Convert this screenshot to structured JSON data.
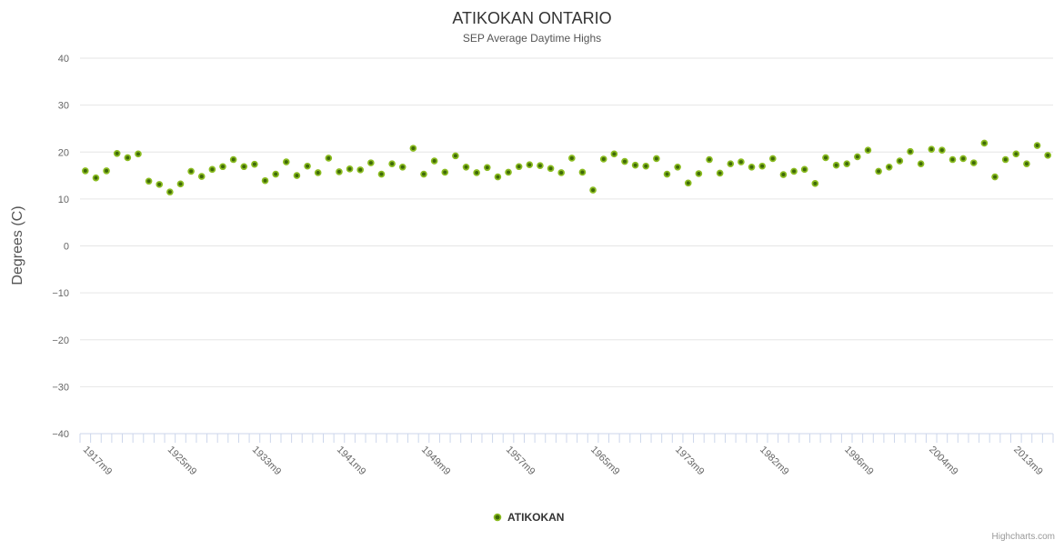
{
  "header": {
    "title": "ATIKOKAN ONTARIO",
    "subtitle": "SEP Average Daytime Highs"
  },
  "legend": {
    "items": [
      {
        "label": "ATIKOKAN",
        "marker": "circle-icon"
      }
    ]
  },
  "credits": {
    "label": "Highcharts.com"
  },
  "colors": {
    "series_green": "#8bbc21",
    "marker_center": "#3e6908",
    "gridline": "#e6e6e6",
    "axis_line": "#ccd6eb",
    "title_text": "#333333",
    "subtitle_text": "#555555",
    "axis_label_text": "#666666",
    "legend_text": "#333333",
    "credits_text": "#999999",
    "background": "#ffffff"
  },
  "chart_data": {
    "type": "scatter",
    "title": "ATIKOKAN ONTARIO",
    "subtitle": "SEP Average Daytime Highs",
    "xlabel": "",
    "ylabel": "Degrees (C)",
    "ylim": [
      -40,
      40
    ],
    "y_tick_interval": 10,
    "y_ticks": [
      40,
      30,
      20,
      10,
      0,
      -10,
      -20,
      -30,
      -40
    ],
    "x_tick_labels": [
      "1917m9",
      "1925m9",
      "1933m9",
      "1941m9",
      "1949m9",
      "1957m9",
      "1965m9",
      "1973m9",
      "1982m9",
      "1996m9",
      "2004m9",
      "2013m9"
    ],
    "x_tick_label_every": 8,
    "x_label_rotation_deg": 45,
    "grid": "horizontal",
    "legend_position": "bottom",
    "series": [
      {
        "name": "ATIKOKAN",
        "values": [
          16,
          14.5,
          16,
          19.7,
          18.8,
          19.6,
          13.8,
          13.1,
          11.5,
          13.2,
          15.9,
          14.8,
          16.3,
          16.9,
          18.4,
          16.9,
          17.4,
          13.9,
          15.3,
          17.9,
          15,
          17,
          15.6,
          18.7,
          15.8,
          16.4,
          16.2,
          17.7,
          15.3,
          17.5,
          16.8,
          20.8,
          15.3,
          18.1,
          15.7,
          19.2,
          16.8,
          15.6,
          16.7,
          14.7,
          15.7,
          16.9,
          17.3,
          17.1,
          16.5,
          15.6,
          18.7,
          15.7,
          11.9,
          18.5,
          19.6,
          18,
          17.2,
          17,
          18.6,
          15.3,
          16.8,
          13.4,
          15.4,
          18.4,
          15.5,
          17.5,
          17.9,
          16.8,
          17,
          18.6,
          15.2,
          15.9,
          16.3,
          13.3,
          18.8,
          17.2,
          17.5,
          19,
          20.4,
          15.9,
          16.8,
          18.1,
          20.1,
          17.5,
          20.6,
          20.4,
          18.4,
          18.6,
          17.7,
          21.9,
          14.7,
          18.4,
          19.6,
          17.5,
          21.4,
          19.3
        ]
      }
    ]
  }
}
